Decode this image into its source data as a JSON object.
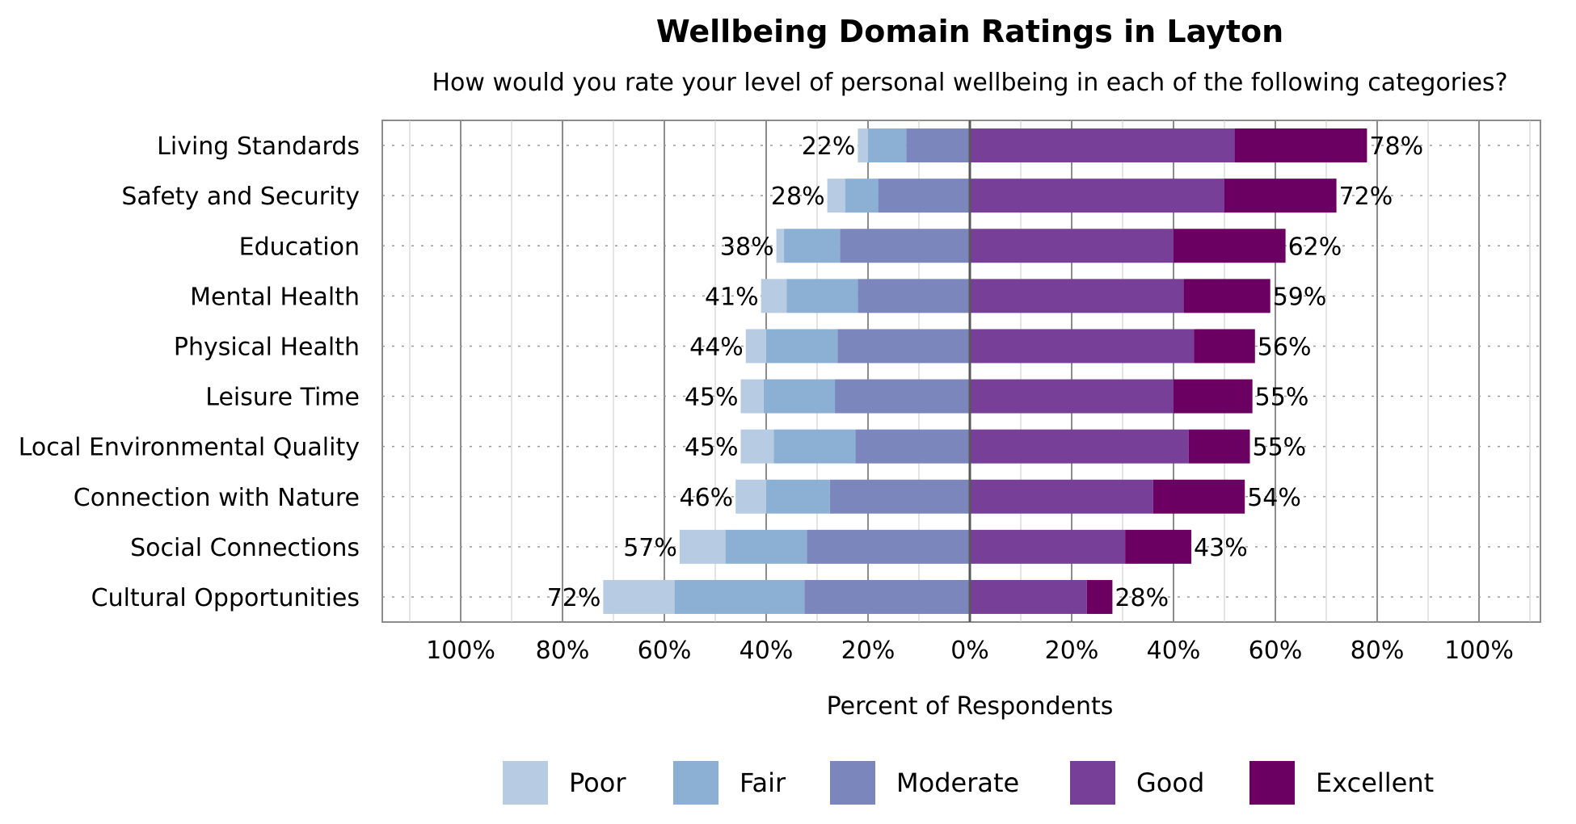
{
  "chart_data": {
    "type": "bar",
    "orientation": "horizontal-diverging-stacked",
    "title": "Wellbeing Domain Ratings in Layton",
    "subtitle": "How would you rate your level of personal wellbeing in each of the following categories?",
    "xlabel": "Percent of Respondents",
    "ylabel": "",
    "xlim": [
      -100,
      100
    ],
    "x_ticks": [
      -100,
      -80,
      -60,
      -40,
      -20,
      0,
      20,
      40,
      60,
      80,
      100
    ],
    "x_tick_labels": [
      "100%",
      "80%",
      "60%",
      "40%",
      "20%",
      "0%",
      "20%",
      "40%",
      "60%",
      "80%",
      "100%"
    ],
    "grid": true,
    "legend_position": "bottom",
    "categories": [
      "Living Standards",
      "Safety and Security",
      "Education",
      "Mental Health",
      "Physical Health",
      "Leisure Time",
      "Local Environmental Quality",
      "Connection with Nature",
      "Social Connections",
      "Cultural Opportunities"
    ],
    "series": [
      {
        "name": "Poor",
        "side": "negative",
        "color": "#b7cbe2",
        "values": [
          2,
          3.5,
          1.5,
          5,
          4,
          4.5,
          6.5,
          6,
          9,
          14
        ]
      },
      {
        "name": "Fair",
        "side": "negative",
        "color": "#8cb0d4",
        "values": [
          7.5,
          6.5,
          11,
          14,
          14,
          14,
          16,
          12.5,
          16,
          25.5
        ]
      },
      {
        "name": "Moderate",
        "side": "negative",
        "color": "#7b86bd",
        "values": [
          12.5,
          18,
          25.5,
          22,
          26,
          26.5,
          22.5,
          27.5,
          32,
          32.5
        ]
      },
      {
        "name": "Good",
        "side": "positive",
        "color": "#773f98",
        "values": [
          52,
          50,
          40,
          42,
          44,
          40,
          43,
          36,
          30.5,
          23
        ]
      },
      {
        "name": "Excellent",
        "side": "positive",
        "color": "#6b0062",
        "values": [
          26,
          22,
          22,
          17,
          12,
          15.5,
          12,
          18,
          13,
          5
        ]
      }
    ],
    "negative_totals": [
      "22%",
      "28%",
      "38%",
      "41%",
      "44%",
      "45%",
      "45%",
      "46%",
      "57%",
      "72%"
    ],
    "positive_totals": [
      "78%",
      "72%",
      "62%",
      "59%",
      "56%",
      "55%",
      "55%",
      "54%",
      "43%",
      "28%"
    ]
  }
}
